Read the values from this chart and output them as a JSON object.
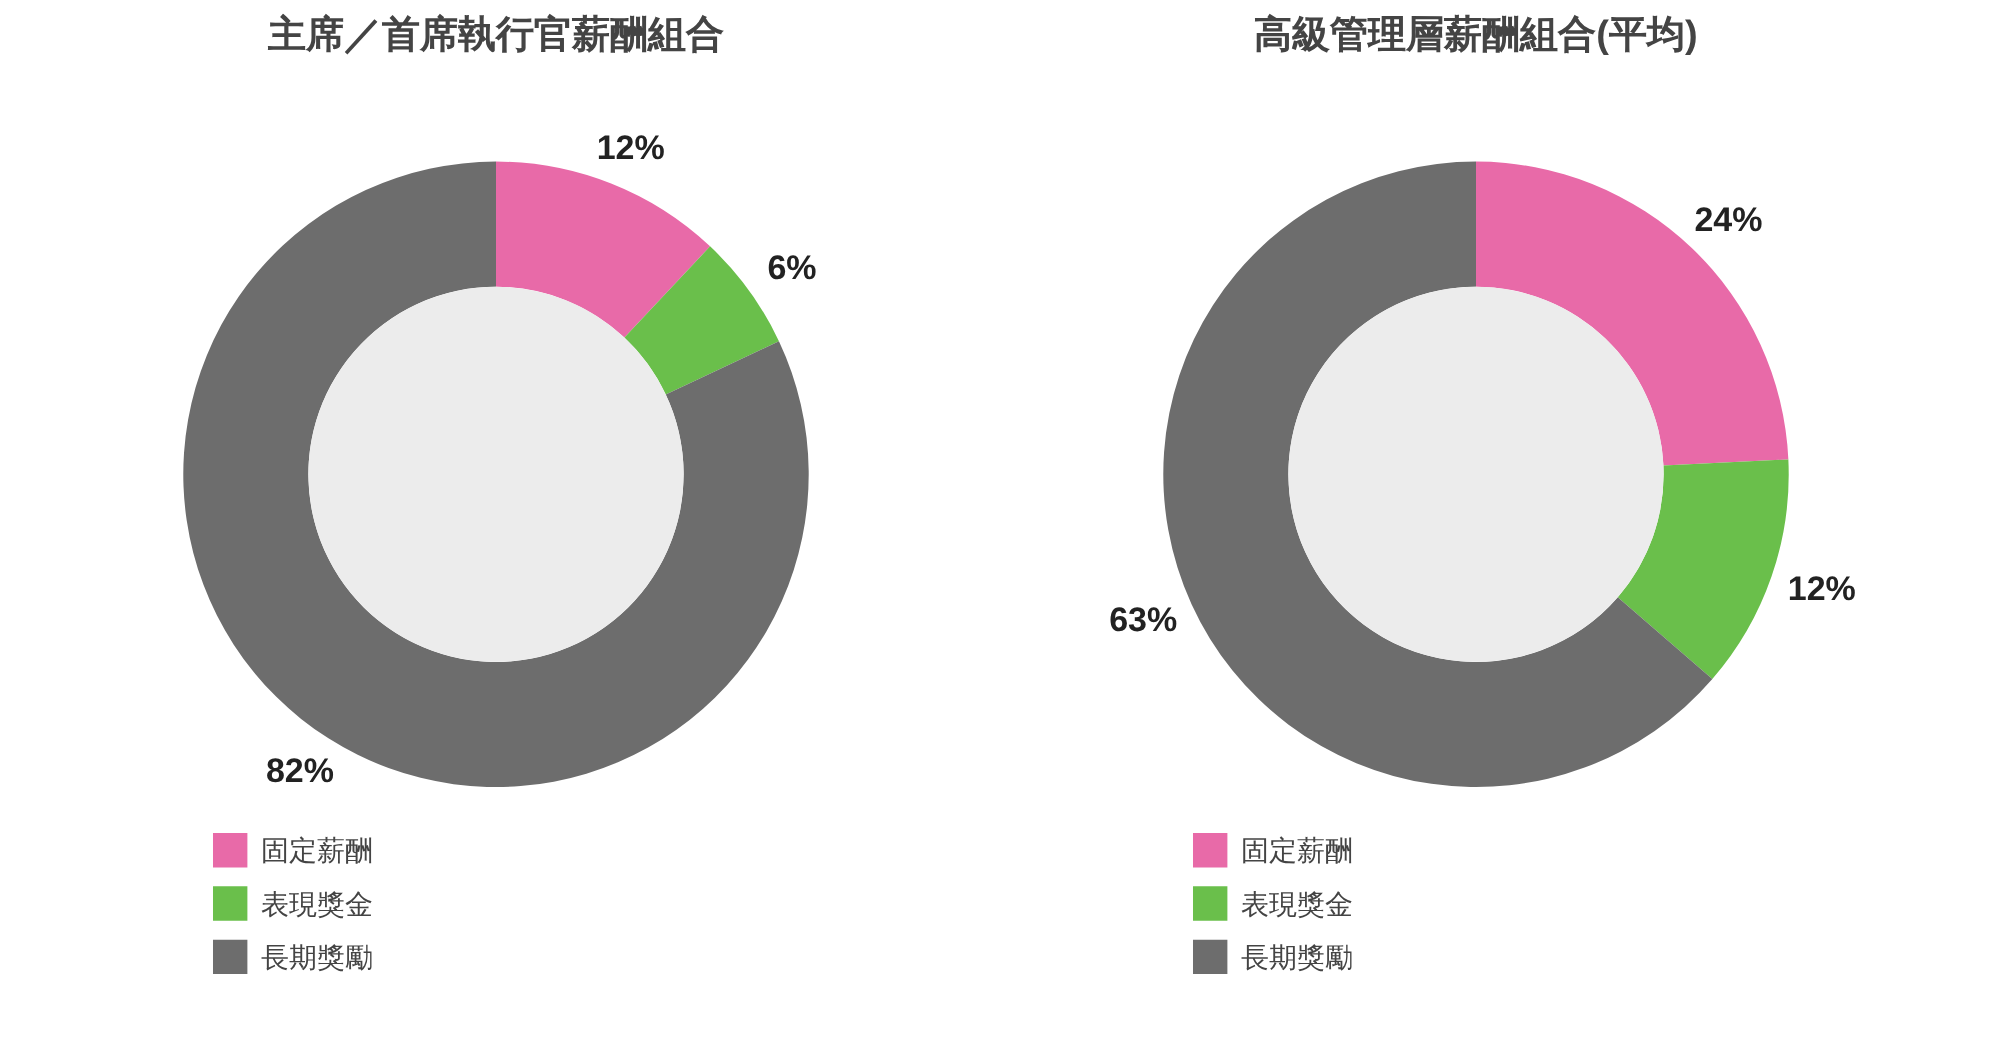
{
  "chart_data": [
    {
      "type": "donut",
      "title": "主席／首席執行官薪酬組合",
      "categories": [
        "固定薪酬",
        "表現獎金",
        "長期獎勵"
      ],
      "values": [
        12,
        6,
        82
      ],
      "colors": [
        "#e86aa8",
        "#6abf4b",
        "#6d6d6d"
      ],
      "value_labels": [
        "12%",
        "6%",
        "82%"
      ],
      "legend": "bottom left"
    },
    {
      "type": "donut",
      "title": "高級管理層薪酬組合(平均)",
      "categories": [
        "固定薪酬",
        "表現獎金",
        "長期獎勵"
      ],
      "values": [
        24,
        12,
        63
      ],
      "colors": [
        "#e86aa8",
        "#6abf4b",
        "#6d6d6d"
      ],
      "value_labels": [
        "24%",
        "12%",
        "63%"
      ],
      "legend": "bottom left"
    }
  ]
}
